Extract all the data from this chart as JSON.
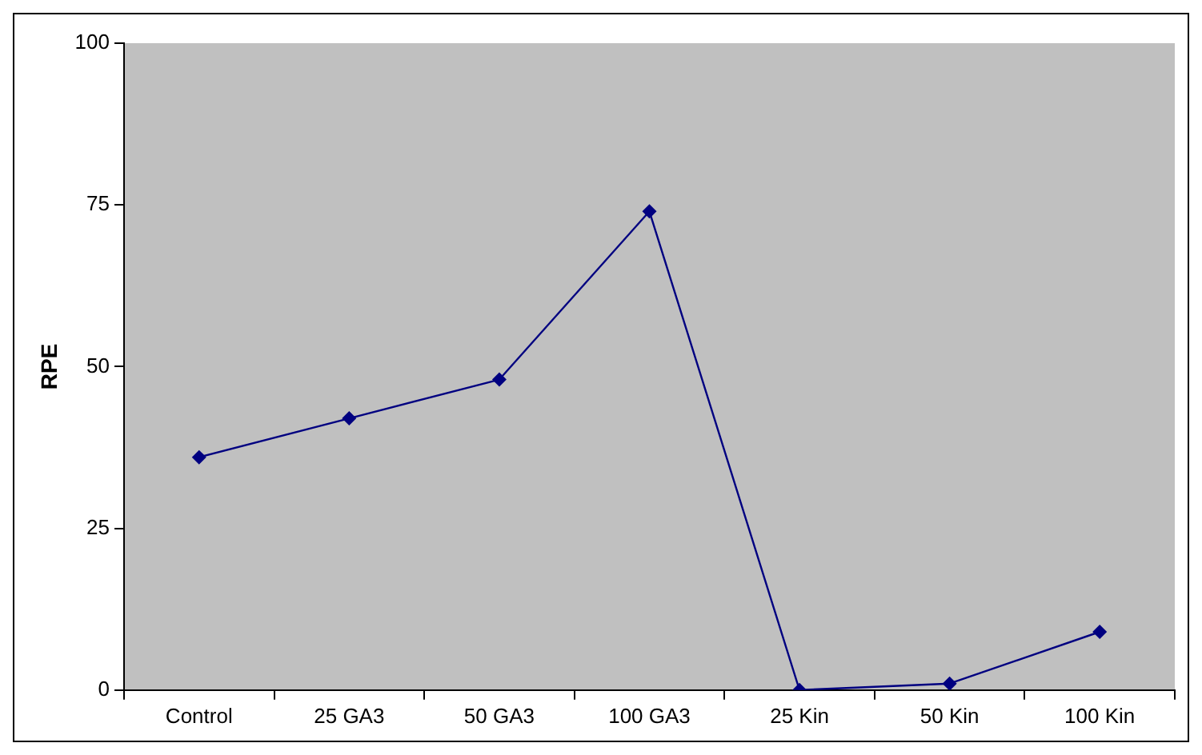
{
  "chart_data": {
    "type": "line",
    "ylabel": "RPE",
    "categories": [
      "Control",
      "25 GA3",
      "50 GA3",
      "100 GA3",
      "25 Kin",
      "50 Kin",
      "100 Kin"
    ],
    "series": [
      {
        "color": "#000080",
        "values": [
          36,
          42,
          48,
          74,
          0,
          1,
          9
        ]
      }
    ],
    "ylim": [
      0,
      100
    ],
    "yticks": [
      0,
      25,
      50,
      75,
      100
    ],
    "grid": false,
    "legend": false,
    "marker": "diamond",
    "line_style": "solid"
  }
}
